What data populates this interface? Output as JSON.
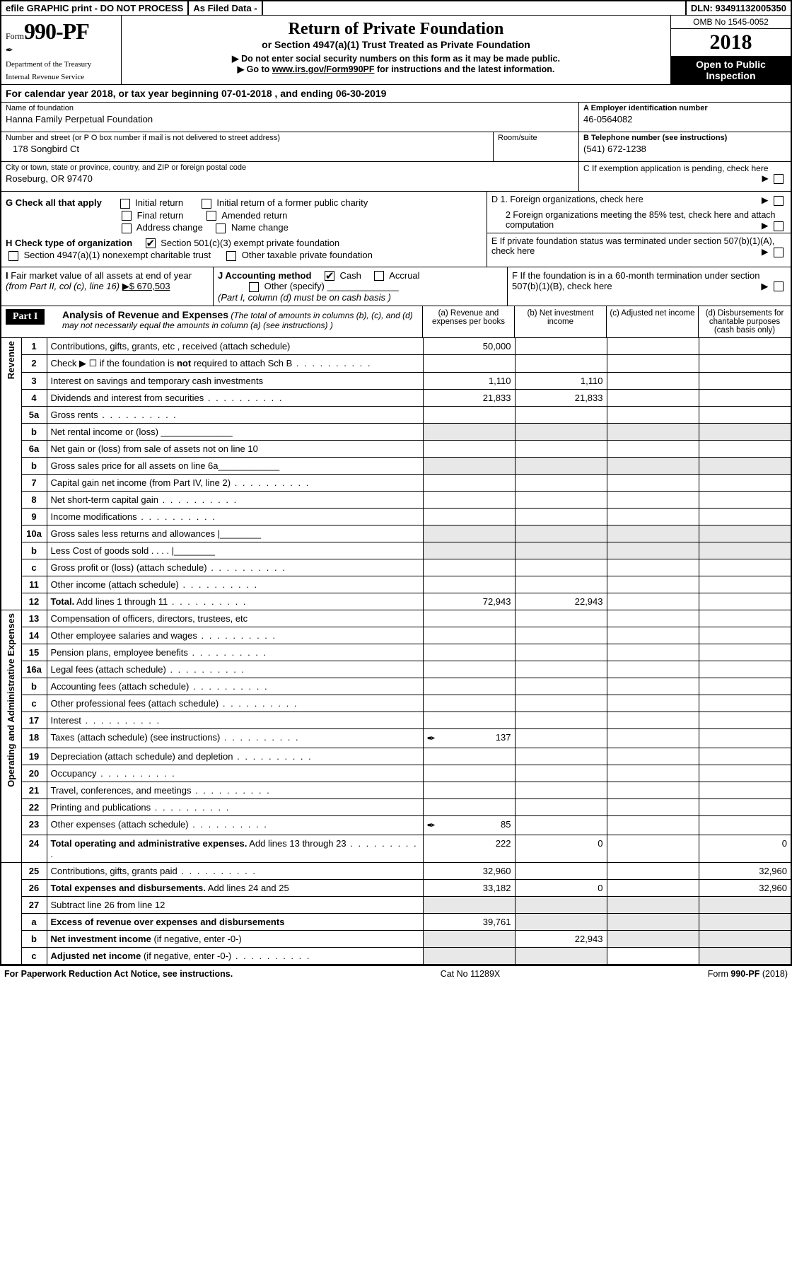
{
  "topbar": {
    "efile": "efile GRAPHIC print - DO NOT PROCESS",
    "asfiled": "As Filed Data -",
    "dln_label": "DLN:",
    "dln": "93491132005350"
  },
  "header": {
    "form_word": "Form",
    "form_number": "990-PF",
    "dept": "Department of the Treasury",
    "irs": "Internal Revenue Service",
    "title": "Return of Private Foundation",
    "subtitle": "or Section 4947(a)(1) Trust Treated as Private Foundation",
    "instr1": "▶ Do not enter social security numbers on this form as it may be made public.",
    "instr2_pre": "▶ Go to ",
    "instr2_link": "www.irs.gov/Form990PF",
    "instr2_post": " for instructions and the latest information.",
    "omb": "OMB No 1545-0052",
    "year": "2018",
    "open": "Open to Public Inspection"
  },
  "calendar": "For calendar year 2018, or tax year beginning 07-01-2018            , and ending 06-30-2019",
  "identity": {
    "name_label": "Name of foundation",
    "name": "Hanna Family Perpetual Foundation",
    "street_label": "Number and street (or P O  box number if mail is not delivered to street address)",
    "street": "178 Songbird Ct",
    "room_label": "Room/suite",
    "city_label": "City or town, state or province, country, and ZIP or foreign postal code",
    "city": "Roseburg, OR  97470",
    "A_label": "A Employer identification number",
    "A": "46-0564082",
    "B_label": "B Telephone number (see instructions)",
    "B": "(541) 672-1238",
    "C_label": "C If exemption application is pending, check here"
  },
  "G": {
    "label": "G Check all that apply",
    "opts": [
      "Initial return",
      "Initial return of a former public charity",
      "Final return",
      "Amended return",
      "Address change",
      "Name change"
    ]
  },
  "H": {
    "label": "H Check type of organization",
    "opt1": "Section 501(c)(3) exempt private foundation",
    "opt2": "Section 4947(a)(1) nonexempt charitable trust",
    "opt3": "Other taxable private foundation"
  },
  "D_block": {
    "D1": "D 1. Foreign organizations, check here",
    "D2": "2  Foreign organizations meeting the 85% test, check here and attach computation",
    "E": "E   If private foundation status was terminated under section 507(b)(1)(A), check here",
    "F": "F   If the foundation is in a 60-month termination under section 507(b)(1)(B), check here"
  },
  "I": {
    "label": "I Fair market value of all assets at end of year (from Part II, col  (c), line 16)",
    "value": "▶$  670,503"
  },
  "J": {
    "label": "J Accounting method",
    "cash": "Cash",
    "accrual": "Accrual",
    "other": "Other (specify)",
    "note": "(Part I, column (d) must be on cash basis )"
  },
  "partI": {
    "label": "Part I",
    "title": "Analysis of Revenue and Expenses",
    "title_note": "(The total of amounts in columns (b), (c), and (d) may not necessarily equal the amounts in column (a) (see instructions) )",
    "col_a": "(a)   Revenue and expenses per books",
    "col_b": "(b)  Net investment income",
    "col_c": "(c)  Adjusted net income",
    "col_d": "(d)  Disbursements for charitable purposes (cash basis only)"
  },
  "side": {
    "revenue": "Revenue",
    "opex": "Operating and Administrative Expenses"
  },
  "rows": [
    {
      "n": "1",
      "desc": "Contributions, gifts, grants, etc , received (attach schedule)",
      "a": "50,000"
    },
    {
      "n": "2",
      "desc_html": "Check ▶ ☐ if the foundation is <b>not</b> required to attach Sch  B",
      "dots": true
    },
    {
      "n": "3",
      "desc": "Interest on savings and temporary cash investments",
      "a": "1,110",
      "b": "1,110"
    },
    {
      "n": "4",
      "desc": "Dividends and interest from securities",
      "dots": true,
      "a": "21,833",
      "b": "21,833"
    },
    {
      "n": "5a",
      "desc": "Gross rents",
      "dots": true
    },
    {
      "n": "b",
      "desc": "Net rental income or (loss)       ______________"
    },
    {
      "n": "6a",
      "desc": "Net gain or (loss) from sale of assets not on line 10"
    },
    {
      "n": "b",
      "desc": "Gross sales price for all assets on line 6a____________"
    },
    {
      "n": "7",
      "desc": "Capital gain net income (from Part IV, line 2)",
      "dots": true
    },
    {
      "n": "8",
      "desc": "Net short-term capital gain",
      "dots": true
    },
    {
      "n": "9",
      "desc": "Income modifications",
      "dots": true
    },
    {
      "n": "10a",
      "desc": "Gross sales less returns and allowances  |________"
    },
    {
      "n": "b",
      "desc": "Less  Cost of goods sold       .  .  .  .   |________"
    },
    {
      "n": "c",
      "desc": "Gross profit or (loss) (attach schedule)",
      "dots": true
    },
    {
      "n": "11",
      "desc": "Other income (attach schedule)",
      "dots": true
    },
    {
      "n": "12",
      "desc": "<b>Total.</b> Add lines 1 through 11",
      "dots": true,
      "a": "72,943",
      "b": "22,943"
    },
    {
      "n": "13",
      "desc": "Compensation of officers, directors, trustees, etc"
    },
    {
      "n": "14",
      "desc": "Other employee salaries and wages",
      "dots": true
    },
    {
      "n": "15",
      "desc": "Pension plans, employee benefits",
      "dots": true
    },
    {
      "n": "16a",
      "desc": "Legal fees (attach schedule)",
      "dots": true
    },
    {
      "n": "b",
      "desc": "Accounting fees (attach schedule)",
      "dots": true
    },
    {
      "n": "c",
      "desc": "Other professional fees (attach schedule)",
      "dots": true
    },
    {
      "n": "17",
      "desc": "Interest",
      "dots": true
    },
    {
      "n": "18",
      "desc": "Taxes (attach schedule) (see instructions)",
      "dots": true,
      "a": "137",
      "icon": true
    },
    {
      "n": "19",
      "desc": "Depreciation (attach schedule) and depletion",
      "dots": true
    },
    {
      "n": "20",
      "desc": "Occupancy",
      "dots": true
    },
    {
      "n": "21",
      "desc": "Travel, conferences, and meetings",
      "dots": true
    },
    {
      "n": "22",
      "desc": "Printing and publications",
      "dots": true
    },
    {
      "n": "23",
      "desc": "Other expenses (attach schedule)",
      "dots": true,
      "a": "85",
      "icon": true
    },
    {
      "n": "24",
      "desc": "<b>Total operating and administrative expenses.</b> Add lines 13 through 23",
      "dots": true,
      "a": "222",
      "b": "0",
      "d": "0"
    },
    {
      "n": "25",
      "desc": "Contributions, gifts, grants paid",
      "dots": true,
      "a": "32,960",
      "d": "32,960"
    },
    {
      "n": "26",
      "desc": "<b>Total expenses and disbursements.</b> Add lines 24 and 25",
      "a": "33,182",
      "b": "0",
      "d": "32,960"
    },
    {
      "n": "27",
      "desc": "Subtract line 26 from line 12"
    },
    {
      "n": "a",
      "desc": "<b>Excess of revenue over expenses and disbursements</b>",
      "a": "39,761"
    },
    {
      "n": "b",
      "desc": "<b>Net investment income</b> (if negative, enter -0-)",
      "b": "22,943"
    },
    {
      "n": "c",
      "desc": "<b>Adjusted net income</b> (if negative, enter -0-)",
      "dots": true
    }
  ],
  "footer": {
    "left": "For Paperwork Reduction Act Notice, see instructions.",
    "mid": "Cat  No  11289X",
    "right": "Form 990-PF (2018)"
  },
  "shaded_cells": {
    "1": [
      "b",
      "c"
    ],
    "2": [
      "b",
      "c",
      "d"
    ],
    "5a": [
      "b",
      "c"
    ],
    "b_5": [
      "a",
      "b",
      "c",
      "d"
    ],
    "6a": [
      "b",
      "c"
    ],
    "b_6": [
      "a",
      "b",
      "c",
      "d"
    ],
    "7": [
      "c"
    ],
    "8": [
      "c"
    ],
    "9": [
      "c"
    ],
    "10a": [
      "a",
      "b",
      "c",
      "d"
    ],
    "b_10": [
      "a",
      "b",
      "c",
      "d"
    ],
    "c_10": [
      "b",
      "c"
    ],
    "11": [
      "c"
    ],
    "12": [
      "c"
    ],
    "19": [
      "d"
    ],
    "27": [
      "a",
      "b",
      "c",
      "d"
    ],
    "27a": [
      "b",
      "c",
      "d"
    ],
    "27b": [
      "c",
      "d"
    ],
    "27c": [
      "d"
    ]
  }
}
